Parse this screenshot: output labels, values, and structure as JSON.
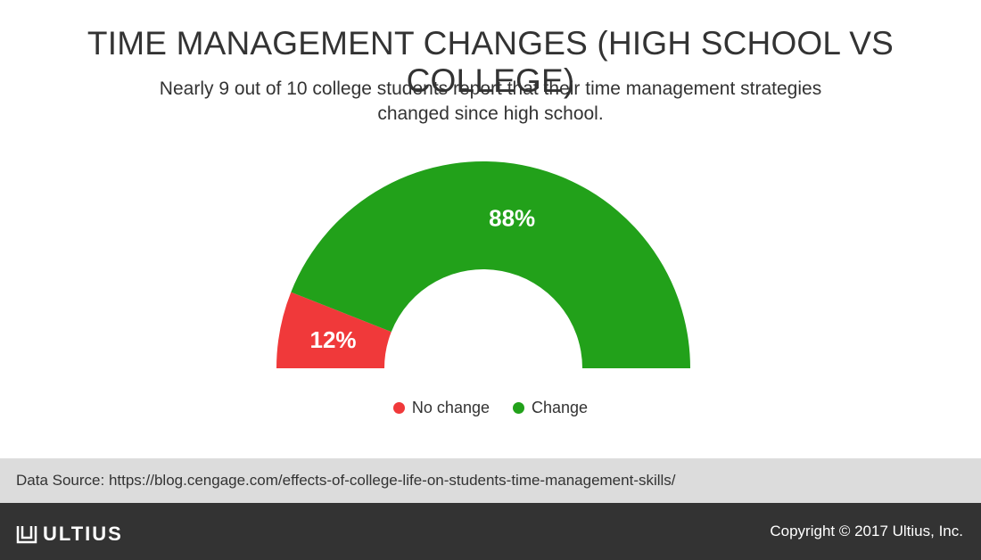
{
  "header": {
    "title": "TIME MANAGEMENT CHANGES (HIGH SCHOOL VS COLLEGE)",
    "subtitle": "Nearly 9 out of 10 college students report that their time management strategies changed since high school."
  },
  "chart_data": {
    "type": "pie",
    "variant": "semi-donut",
    "categories": [
      "No change",
      "Change"
    ],
    "values": [
      12,
      88
    ],
    "labels": [
      "12%",
      "88%"
    ],
    "colors": [
      "#f0393a",
      "#22a11a"
    ],
    "legend": "bottom"
  },
  "source": {
    "text": "Data Source: https://blog.cengage.com/effects-of-college-life-on-students-time-management-skills/"
  },
  "footer": {
    "brand": "ULTIUS",
    "brand_icon": "ultius-logo-icon",
    "copyright": "Copyright © 2017 Ultius, Inc."
  }
}
